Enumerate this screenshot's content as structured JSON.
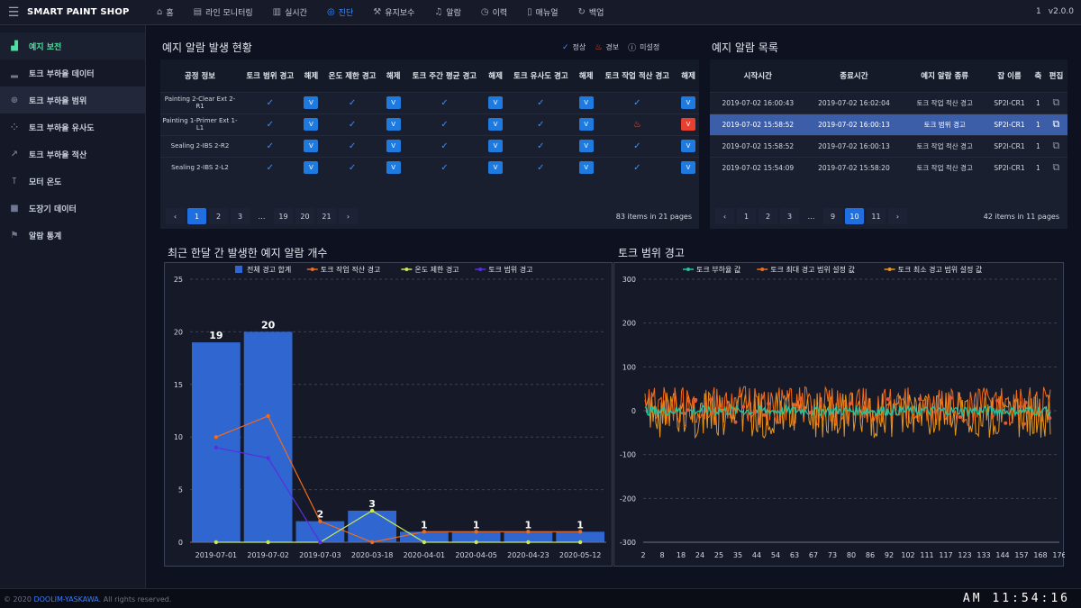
{
  "app": {
    "title": "SMART PAINT SHOP",
    "menu_icon": "hamburger-icon",
    "user": "1",
    "version": "v2.0.0"
  },
  "nav": [
    {
      "label": "홈",
      "icon": "home-icon",
      "glyph": "⌂"
    },
    {
      "label": "라인 모니터링",
      "icon": "monitor-icon",
      "glyph": "▤"
    },
    {
      "label": "실시간",
      "icon": "bar-chart-icon",
      "glyph": "▥"
    },
    {
      "label": "진단",
      "icon": "diagnosis-icon",
      "glyph": "◎",
      "active": true
    },
    {
      "label": "유지보수",
      "icon": "wrench-icon",
      "glyph": "⚒"
    },
    {
      "label": "알람",
      "icon": "bell-icon",
      "glyph": "♫"
    },
    {
      "label": "이력",
      "icon": "clock-icon",
      "glyph": "◷"
    },
    {
      "label": "매뉴얼",
      "icon": "book-icon",
      "glyph": "▯"
    },
    {
      "label": "백업",
      "icon": "backup-icon",
      "glyph": "↻"
    }
  ],
  "sidebar": [
    {
      "label": "예지 보전",
      "icon": "predict-icon",
      "glyph": "▟",
      "active": true
    },
    {
      "label": "토크 부하율 데이터",
      "icon": "bar-icon",
      "glyph": "▂"
    },
    {
      "label": "토크 부하율 범위",
      "icon": "target-icon",
      "glyph": "⊕",
      "highlight": true
    },
    {
      "label": "토크 부하율 유사도",
      "icon": "grid-icon",
      "glyph": "⁘"
    },
    {
      "label": "토크 부하율 적산",
      "icon": "trend-icon",
      "glyph": "↗"
    },
    {
      "label": "모터 온도",
      "icon": "thermometer-icon",
      "glyph": "⊺"
    },
    {
      "label": "도장기 데이터",
      "icon": "video-icon",
      "glyph": "■"
    },
    {
      "label": "알람 통계",
      "icon": "alarm-icon",
      "glyph": "⚑"
    }
  ],
  "alarm_status": {
    "title": "예지 알람 발생 현황",
    "legend": {
      "normal": "정상",
      "warning": "경보",
      "unset": "미설정"
    },
    "headers": [
      "공정 정보",
      "토크 범위 경고",
      "해제",
      "온도 제한 경고",
      "해제",
      "토크 주간 평균 경고",
      "해제",
      "토크 유사도 경고",
      "해제",
      "토크 작업 적산 경고",
      "해제"
    ],
    "rows": [
      {
        "process": "Painting 2-Clear Ext 2-R1",
        "accum": "ok",
        "last_btn": "blue"
      },
      {
        "process": "Painting 1-Primer Ext 1-L1",
        "accum": "warn",
        "last_btn": "red"
      },
      {
        "process": "Sealing 2-IBS 2-R2",
        "accum": "ok",
        "last_btn": "blue"
      },
      {
        "process": "Sealing 2-IBS 2-L2",
        "accum": "ok",
        "last_btn": "blue"
      }
    ],
    "release_label": "V",
    "pages": [
      "1",
      "2",
      "3",
      "…",
      "19",
      "20",
      "21"
    ],
    "active_page": "1",
    "info": "83 items in 21 pages"
  },
  "alarm_list": {
    "title": "예지 알람 목록",
    "headers": [
      "시작시간",
      "종료시간",
      "예지 알람 종류",
      "잡 이름",
      "축",
      "편집"
    ],
    "rows": [
      {
        "start": "2019-07-02 16:00:43",
        "end": "2019-07-02 16:02:04",
        "type": "토크 작업 적산 경고",
        "job": "SP2I-CR1",
        "axis": "1"
      },
      {
        "start": "2019-07-02 15:58:52",
        "end": "2019-07-02 16:00:13",
        "type": "토크 범위 경고",
        "job": "SP2I-CR1",
        "axis": "1",
        "selected": true
      },
      {
        "start": "2019-07-02 15:58:52",
        "end": "2019-07-02 16:00:13",
        "type": "토크 작업 적산 경고",
        "job": "SP2I-CR1",
        "axis": "1"
      },
      {
        "start": "2019-07-02 15:54:09",
        "end": "2019-07-02 15:58:20",
        "type": "토크 작업 적산 경고",
        "job": "SP2I-CR1",
        "axis": "1"
      }
    ],
    "pages": [
      "1",
      "2",
      "3",
      "…",
      "9",
      "10",
      "11"
    ],
    "active_page": "10",
    "info": "42 items in 11 pages"
  },
  "chart_data": [
    {
      "type": "bar",
      "title": "최근 한달 간 발생한 예지 알람 개수",
      "categories": [
        "2019-07-01",
        "2019-07-02",
        "2019-07-03",
        "2020-03-18",
        "2020-04-01",
        "2020-04-05",
        "2020-04-23",
        "2020-05-12"
      ],
      "ylim": [
        0,
        25
      ],
      "yticks": [
        0,
        5,
        10,
        15,
        20,
        25
      ],
      "series": [
        {
          "name": "전체 경고 합계",
          "kind": "bar",
          "color": "#2f66d0",
          "values": [
            19,
            20,
            2,
            3,
            1,
            1,
            1,
            1
          ],
          "labels": [
            "19",
            "20",
            "2",
            "3",
            "1",
            "1",
            "1",
            "1"
          ]
        },
        {
          "name": "토크 작업 적산 경고",
          "kind": "line",
          "color": "#f26a1b",
          "values": [
            10,
            12,
            2,
            0,
            1,
            1,
            1,
            1
          ]
        },
        {
          "name": "온도 제한 경고",
          "kind": "line",
          "color": "#c8e85a",
          "values": [
            0,
            0,
            0,
            3,
            0,
            0,
            0,
            0
          ]
        },
        {
          "name": "토크 범위 경고",
          "kind": "line",
          "color": "#5a2ee0",
          "values": [
            9,
            8,
            0,
            null,
            null,
            null,
            null,
            null
          ]
        }
      ]
    },
    {
      "type": "line",
      "title": "토크 범위 경고",
      "ylim": [
        -300,
        300
      ],
      "yticks": [
        300,
        200,
        100,
        0,
        -100,
        -200,
        -300
      ],
      "xticks": [
        "2",
        "8",
        "18",
        "24",
        "25",
        "35",
        "44",
        "54",
        "63",
        "67",
        "73",
        "80",
        "86",
        "92",
        "102",
        "111",
        "117",
        "123",
        "133",
        "144",
        "157",
        "168",
        "176"
      ],
      "series": [
        {
          "name": "토크 부하율 값",
          "color": "#20c6a0"
        },
        {
          "name": "토크 최대 경고 범위 설정 값",
          "color": "#f26a1b"
        },
        {
          "name": "토크 최소 경고 범위 설정 값",
          "color": "#e8951a"
        }
      ]
    }
  ],
  "footer": {
    "copyright_prefix": "© 2020 ",
    "company": "DOOLIM-YASKAWA",
    "copyright_suffix": ". All rights reserved.",
    "clock": "AM 11:54:16"
  }
}
